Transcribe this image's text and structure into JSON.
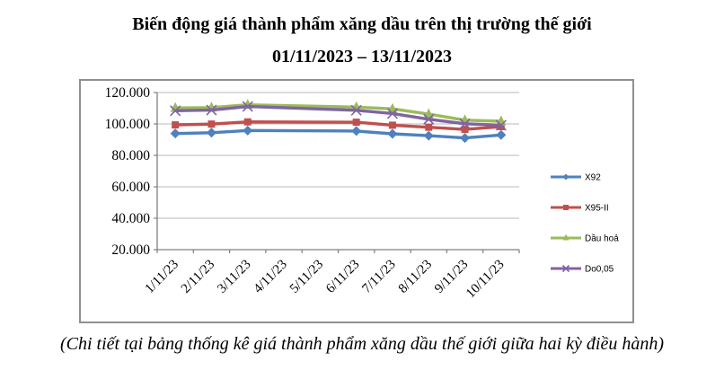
{
  "title": {
    "line1": "Biến động giá thành phẩm xăng dầu trên thị trường thế giới",
    "line2": "01/11/2023 – 13/11/2023"
  },
  "footer": "(Chi tiết tại bảng thống kê giá thành phẩm xăng dầu thế giới giữa hai kỳ điều hành)",
  "chart_data": {
    "type": "line",
    "title": "",
    "xlabel": "",
    "ylabel": "",
    "categories": [
      "1/11/23",
      "2/11/23",
      "3/11/23",
      "4/11/23",
      "5/11/23",
      "6/11/23",
      "7/11/23",
      "8/11/23",
      "9/11/23",
      "10/11/23"
    ],
    "series": [
      {
        "name": "X92",
        "color": "#4F81BD",
        "marker": "diamond",
        "values": [
          93900,
          94400,
          95800,
          null,
          null,
          95500,
          93700,
          92500,
          91100,
          93000
        ]
      },
      {
        "name": "X95-II",
        "color": "#C0504D",
        "marker": "square",
        "values": [
          99400,
          99900,
          101300,
          null,
          null,
          101100,
          99200,
          97900,
          96500,
          98300
        ]
      },
      {
        "name": "Dầu hoả",
        "color": "#9BBB59",
        "marker": "triangle",
        "values": [
          110200,
          110400,
          112200,
          null,
          null,
          110700,
          109600,
          106300,
          102400,
          101700
        ]
      },
      {
        "name": "Do0,05",
        "color": "#8064A2",
        "marker": "x",
        "values": [
          108400,
          108800,
          111100,
          null,
          null,
          108700,
          106600,
          103000,
          100100,
          99200
        ]
      }
    ],
    "ylim": [
      20000,
      120000
    ],
    "ytick_step": 20000,
    "ytick_labels": [
      "20.000",
      "40.000",
      "60.000",
      "80.000",
      "100.000",
      "120.000"
    ],
    "grid": true,
    "legend_position": "right-inside",
    "missing_points_note": "no markers/data on 4/11/23 and 5/11/23; lines connect across the gap"
  },
  "colors": {
    "axis": "#808080",
    "gridline": "#b8b8b8",
    "frame_border": "#8f8f8f"
  }
}
